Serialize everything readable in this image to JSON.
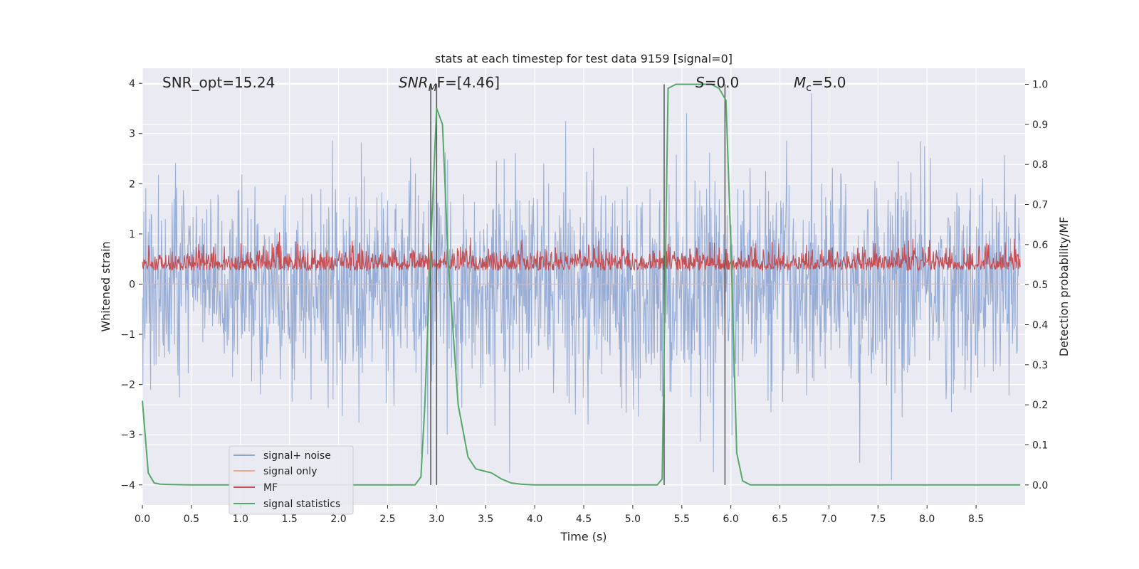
{
  "chart_data": {
    "type": "line",
    "title": "stats at each timestep for test data 9159 [signal=0]",
    "xlabel": "Time (s)",
    "ylabel_left": "Whitened strain",
    "ylabel_right": "Detection probability/MF",
    "xlim": [
      0.0,
      9.0
    ],
    "ylim_left": [
      -4.4,
      4.3
    ],
    "ylim_right": [
      -0.05,
      1.04
    ],
    "xticks": [
      "0.0",
      "0.5",
      "1.0",
      "1.5",
      "2.0",
      "2.5",
      "3.0",
      "3.5",
      "4.0",
      "4.5",
      "5.0",
      "5.5",
      "6.0",
      "6.5",
      "7.0",
      "7.5",
      "8.0",
      "8.5"
    ],
    "yticks_left": [
      "4",
      "3",
      "2",
      "1",
      "0",
      "−1",
      "−2",
      "−3",
      "−4"
    ],
    "yticks_right": [
      "1.0",
      "0.9",
      "0.8",
      "0.7",
      "0.6",
      "0.5",
      "0.4",
      "0.3",
      "0.2",
      "0.1",
      "0.0"
    ],
    "grid": true,
    "legend_position": "lower-left",
    "annotations": {
      "snr_opt": "SNR_opt=15.24",
      "snr_mf_main": "SNR",
      "snr_mf_sub": "M",
      "snr_mf_rest": "F=[4.46]",
      "s_main": "S",
      "s_rest": "=0.0",
      "mc_main": "M",
      "mc_sub": "c",
      "mc_rest": "=5.0"
    },
    "series": [
      {
        "name": "signal+ noise",
        "color": "#8fa6d1",
        "style": "noise",
        "amplitude_range": [
          -3.9,
          3.8
        ]
      },
      {
        "name": "signal only",
        "color": "#f0a98c",
        "style": "flat",
        "values_y": 0
      },
      {
        "name": "MF",
        "color": "#c44e52",
        "style": "band",
        "range_right": [
          0.5,
          0.62
        ]
      },
      {
        "name": "signal statistics",
        "color": "#55a868",
        "x": [
          0.0,
          0.06,
          0.12,
          0.18,
          0.3,
          0.5,
          1.0,
          2.0,
          2.5,
          2.78,
          2.84,
          2.88,
          2.94,
          3.0,
          3.06,
          3.12,
          3.22,
          3.32,
          3.4,
          3.48,
          3.56,
          3.66,
          3.76,
          3.86,
          4.0,
          4.5,
          5.0,
          5.25,
          5.3,
          5.36,
          5.44,
          5.6,
          5.8,
          5.88,
          5.95,
          6.0,
          6.06,
          6.12,
          6.2,
          6.5,
          7.0,
          8.0,
          8.95
        ],
        "y": [
          0.21,
          0.03,
          0.005,
          0.002,
          0.001,
          0.0,
          0.0,
          0.0,
          0.0,
          0.0,
          0.02,
          0.2,
          0.6,
          0.94,
          0.9,
          0.55,
          0.2,
          0.07,
          0.04,
          0.035,
          0.03,
          0.015,
          0.005,
          0.002,
          0.0,
          0.0,
          0.0,
          0.0,
          0.015,
          0.99,
          1.0,
          1.0,
          1.0,
          0.99,
          0.96,
          0.6,
          0.08,
          0.01,
          0.0,
          0.0,
          0.0,
          0.0,
          0.0
        ]
      }
    ],
    "vertical_lines": [
      2.94,
      3.0,
      5.32,
      5.94
    ]
  }
}
